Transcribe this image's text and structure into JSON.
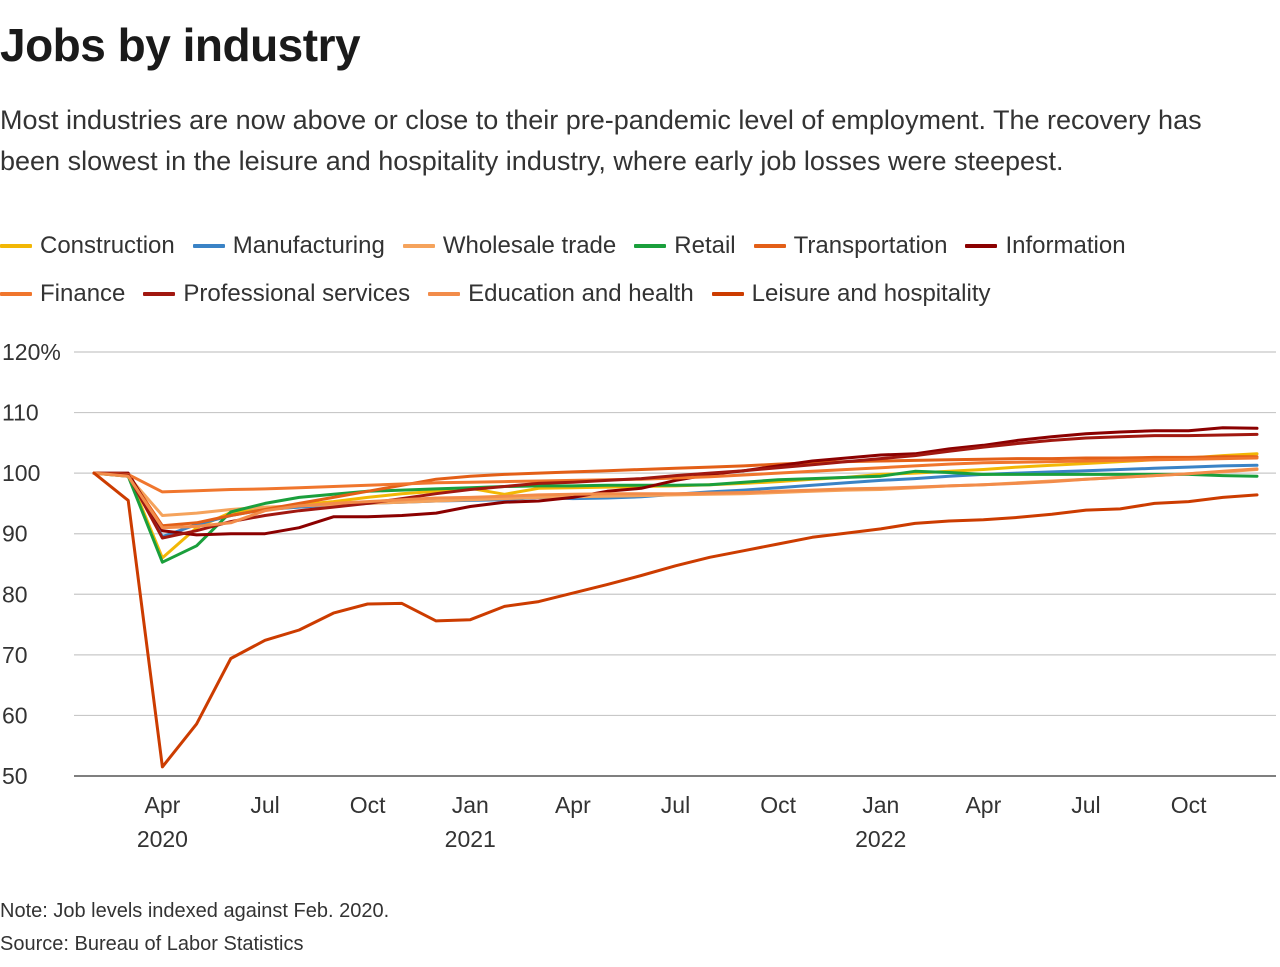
{
  "header": {
    "title": "Jobs by industry",
    "subtitle": "Most industries are now above or close to their pre-pandemic level of employment. The recovery has been slowest in the leisure and hospitality industry, where early job losses were steepest."
  },
  "footer": {
    "note": "Note: Job levels indexed against Feb. 2020.",
    "source": "Source: Bureau of Labor Statistics"
  },
  "chart_data": {
    "type": "line",
    "title": "Jobs by industry",
    "xlabel": "",
    "ylabel": "",
    "ylim": [
      50,
      120
    ],
    "yticks": [
      50,
      60,
      70,
      80,
      90,
      100,
      110,
      120
    ],
    "ytick_labels": [
      "50",
      "60",
      "70",
      "80",
      "90",
      "100",
      "110",
      "120%"
    ],
    "grid": true,
    "legend_position": "top",
    "x": [
      "Feb 2020",
      "Mar 2020",
      "Apr 2020",
      "May 2020",
      "Jun 2020",
      "Jul 2020",
      "Aug 2020",
      "Sep 2020",
      "Oct 2020",
      "Nov 2020",
      "Dec 2020",
      "Jan 2021",
      "Feb 2021",
      "Mar 2021",
      "Apr 2021",
      "May 2021",
      "Jun 2021",
      "Jul 2021",
      "Aug 2021",
      "Sep 2021",
      "Oct 2021",
      "Nov 2021",
      "Dec 2021",
      "Jan 2022",
      "Feb 2022",
      "Mar 2022",
      "Apr 2022",
      "May 2022",
      "Jun 2022",
      "Jul 2022",
      "Aug 2022",
      "Sep 2022",
      "Oct 2022",
      "Nov 2022",
      "Dec 2022"
    ],
    "xticks": [
      {
        "index": 2,
        "label": "Apr",
        "year": "2020"
      },
      {
        "index": 5,
        "label": "Jul",
        "year": ""
      },
      {
        "index": 8,
        "label": "Oct",
        "year": ""
      },
      {
        "index": 11,
        "label": "Jan",
        "year": "2021"
      },
      {
        "index": 14,
        "label": "Apr",
        "year": ""
      },
      {
        "index": 17,
        "label": "Jul",
        "year": ""
      },
      {
        "index": 20,
        "label": "Oct",
        "year": ""
      },
      {
        "index": 23,
        "label": "Jan",
        "year": "2022"
      },
      {
        "index": 26,
        "label": "Apr",
        "year": ""
      },
      {
        "index": 29,
        "label": "Jul",
        "year": ""
      },
      {
        "index": 32,
        "label": "Oct",
        "year": ""
      }
    ],
    "legend_rows": [
      [
        0,
        1,
        2,
        3,
        4,
        5
      ],
      [
        6,
        7,
        8,
        9
      ]
    ],
    "series": [
      {
        "name": "Construction",
        "color": "#f2b705",
        "values": [
          100,
          99.8,
          86,
          91,
          93.5,
          94,
          94.8,
          95.3,
          96,
          96.6,
          97,
          97.5,
          96.5,
          97.5,
          97.6,
          97.7,
          97.8,
          97.9,
          98.1,
          98.3,
          98.6,
          99,
          99.3,
          99.8,
          100,
          100.3,
          100.6,
          101,
          101.3,
          101.6,
          101.9,
          102.2,
          102.5,
          102.9,
          103.2
        ]
      },
      {
        "name": "Manufacturing",
        "color": "#3a83c6",
        "values": [
          100,
          99.6,
          89.5,
          91.5,
          93,
          94,
          94.4,
          94.7,
          95,
          95.2,
          95.4,
          95.5,
          95.6,
          96,
          95.8,
          95.9,
          96.1,
          96.5,
          96.9,
          97.2,
          97.6,
          98,
          98.4,
          98.8,
          99.1,
          99.5,
          99.8,
          100,
          100.2,
          100.4,
          100.6,
          100.8,
          101,
          101.2,
          101.3
        ]
      },
      {
        "name": "Wholesale trade",
        "color": "#f5a35c",
        "values": [
          100,
          99.5,
          93,
          93.4,
          94,
          94.4,
          94.6,
          94.8,
          95,
          95.2,
          95.4,
          95.6,
          95.8,
          96,
          96.1,
          96.2,
          96.3,
          96.4,
          96.5,
          96.6,
          96.8,
          97,
          97.2,
          97.3,
          97.6,
          97.9,
          98.1,
          98.4,
          98.7,
          99,
          99.3,
          99.6,
          99.9,
          100.2,
          100.6
        ]
      },
      {
        "name": "Retail",
        "color": "#1a9f3c",
        "values": [
          100,
          99.5,
          85.3,
          88,
          93.6,
          95,
          96,
          96.5,
          97,
          97.2,
          97.4,
          97.6,
          97.8,
          97.9,
          97.9,
          98,
          98,
          98,
          98.1,
          98.5,
          98.9,
          99.1,
          99.3,
          99.5,
          100.3,
          100.1,
          99.8,
          99.8,
          99.8,
          99.8,
          99.8,
          99.8,
          99.8,
          99.6,
          99.5
        ]
      },
      {
        "name": "Transportation",
        "color": "#e35f17",
        "values": [
          100,
          99.7,
          91.3,
          91.8,
          93,
          94,
          95,
          96,
          97,
          98,
          99,
          99.5,
          99.8,
          100,
          100.2,
          100.4,
          100.6,
          100.8,
          101,
          101.2,
          101.5,
          101.7,
          101.9,
          102,
          102.1,
          102.2,
          102.3,
          102.4,
          102.4,
          102.5,
          102.5,
          102.6,
          102.6,
          102.7,
          102.7
        ]
      },
      {
        "name": "Information",
        "color": "#8b0000",
        "values": [
          100,
          100,
          90.5,
          89.8,
          90,
          90,
          91,
          92.8,
          92.8,
          93,
          93.4,
          94.5,
          95.2,
          95.4,
          96,
          97,
          97.5,
          98.8,
          99.8,
          100.4,
          101.2,
          102,
          102.5,
          103,
          103.2,
          104,
          104.6,
          105.4,
          106,
          106.5,
          106.8,
          107,
          107,
          107.5,
          107.4
        ]
      },
      {
        "name": "Finance",
        "color": "#f0762d",
        "values": [
          100,
          99.8,
          96.9,
          97.1,
          97.3,
          97.4,
          97.6,
          97.8,
          98,
          98.2,
          98.4,
          98.5,
          98.6,
          98.7,
          98.8,
          98.9,
          99,
          99.2,
          99.4,
          99.7,
          100,
          100.3,
          100.6,
          100.9,
          101.2,
          101.5,
          101.7,
          101.8,
          101.9,
          102,
          102.1,
          102.2,
          102.3,
          102.4,
          102.5
        ]
      },
      {
        "name": "Professional services",
        "color": "#a11810",
        "values": [
          100,
          99.7,
          89.3,
          90.5,
          92,
          93,
          93.8,
          94.4,
          95,
          95.8,
          96.6,
          97.3,
          97.8,
          98.3,
          98.5,
          98.8,
          99.1,
          99.6,
          100,
          100.4,
          100.9,
          101.4,
          101.9,
          102.4,
          102.9,
          103.6,
          104.3,
          104.9,
          105.4,
          105.8,
          106,
          106.2,
          106.2,
          106.3,
          106.4
        ]
      },
      {
        "name": "Education and health",
        "color": "#f28c4a",
        "values": [
          100,
          99.5,
          91,
          91.2,
          91.8,
          93.8,
          94.6,
          95,
          95.3,
          95.6,
          95.9,
          96,
          96.2,
          96.4,
          96.5,
          96.6,
          96.6,
          96.6,
          96.7,
          96.8,
          97,
          97.2,
          97.4,
          97.5,
          97.7,
          97.9,
          98.1,
          98.3,
          98.6,
          99,
          99.3,
          99.6,
          99.9,
          100.3,
          100.7
        ]
      },
      {
        "name": "Leisure and hospitality",
        "color": "#cc3c00",
        "values": [
          100,
          95.5,
          51.5,
          58.6,
          69.4,
          72.4,
          74.1,
          76.9,
          78.4,
          78.5,
          75.6,
          75.8,
          78,
          78.8,
          80.2,
          81.6,
          83.1,
          84.7,
          86.1,
          87.2,
          88.3,
          89.4,
          90.1,
          90.8,
          91.7,
          92.1,
          92.3,
          92.7,
          93.2,
          93.9,
          94.1,
          95,
          95.3,
          96,
          96.4
        ]
      }
    ]
  }
}
